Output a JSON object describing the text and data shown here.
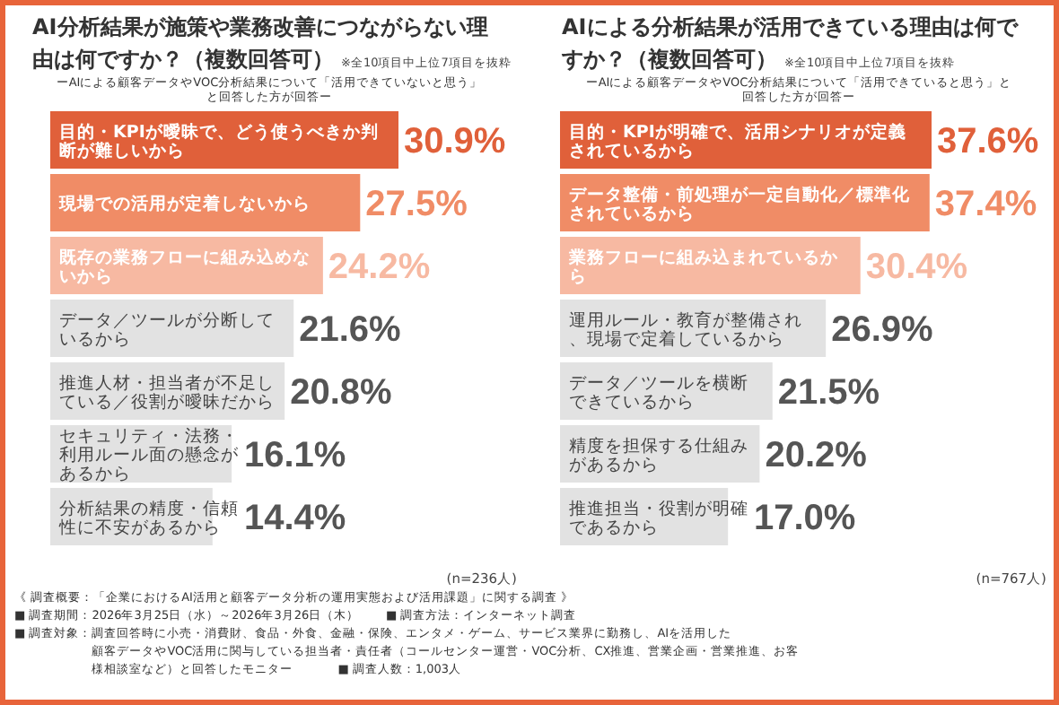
{
  "chart_data": [
    {
      "type": "bar",
      "orientation": "horizontal",
      "title": "AI分析結果が施策や業務改善につながらない理由は何ですか？（複数回答可）",
      "subtitle": "ーAIによる顧客データやVOC分析結果について「活用できていないと思う」と回答した方が回答ー",
      "annotations": [
        "※全10項目中上位7項目を抜粋",
        "(n=236人)"
      ],
      "categories": [
        "目的・KPIが曖昧で、どう使うべきか判断が難しいから",
        "現場での活用が定着しないから",
        "既存の業務フローに組み込めないから",
        "データ／ツールが分断しているから",
        "推進人材・担当者が不足している／役割が曖昧だから",
        "セキュリティ・法務・利用ルール面の懸念があるから",
        "分析結果の精度・信頼性に不安があるから"
      ],
      "values": [
        30.9,
        27.5,
        24.2,
        21.6,
        20.8,
        16.1,
        14.4
      ],
      "value_labels": [
        "30.9%",
        "27.5%",
        "24.2%",
        "21.6%",
        "20.8%",
        "16.1%",
        "14.4%"
      ],
      "colors": [
        "#e0603a",
        "#f08c66",
        "#f7b9a2",
        "#e2e2e2",
        "#e2e2e2",
        "#e2e2e2",
        "#e2e2e2"
      ]
    },
    {
      "type": "bar",
      "orientation": "horizontal",
      "title": "AIによる分析結果が活用できている理由は何ですか？（複数回答可）",
      "subtitle": "ーAIによる顧客データやVOC分析結果について「活用できていると思う」と回答した方が回答ー",
      "annotations": [
        "※全10項目中上位7項目を抜粋",
        "(n=767人)"
      ],
      "categories": [
        "目的・KPIが明確で、活用シナリオが定義されているから",
        "データ整備・前処理が一定自動化／標準化されているから",
        "業務フローに組み込まれているから",
        "運用ルール・教育が整備され、現場で定着しているから",
        "データ／ツールを横断できているから",
        "精度を担保する仕組みがあるから",
        "推進担当・役割が明確であるから"
      ],
      "values": [
        37.6,
        37.4,
        30.4,
        26.9,
        21.5,
        20.2,
        17.0
      ],
      "value_labels": [
        "37.6%",
        "37.4%",
        "30.4%",
        "26.9%",
        "21.5%",
        "20.2%",
        "17.0%"
      ],
      "colors": [
        "#e0603a",
        "#f08c66",
        "#f7b9a2",
        "#e2e2e2",
        "#e2e2e2",
        "#e2e2e2",
        "#e2e2e2"
      ]
    },
    {
      "type": "other",
      "annotations": [
        "《 調査概要：「企業におけるAI活用と顧客データ分析の運用実態および活用課題」に関する調査 》",
        "■ 調査期間：2026年3月25日（水）～2026年3月26日（木）",
        "■ 調査方法：インターネット調査",
        "■ 調査対象：調査回答時に小売・消費財、食品・外食、金融・保険、エンタメ・ゲーム、サービス業界に勤務し、AIを活用した顧客データやVOC活用に関与している担当者・責任者（コールセンター運営・VOC分析、CX推進、営業企画・営業推進、お客様相談室など）と回答したモニター",
        "■ 調査人数：1,003人"
      ]
    }
  ]
}
